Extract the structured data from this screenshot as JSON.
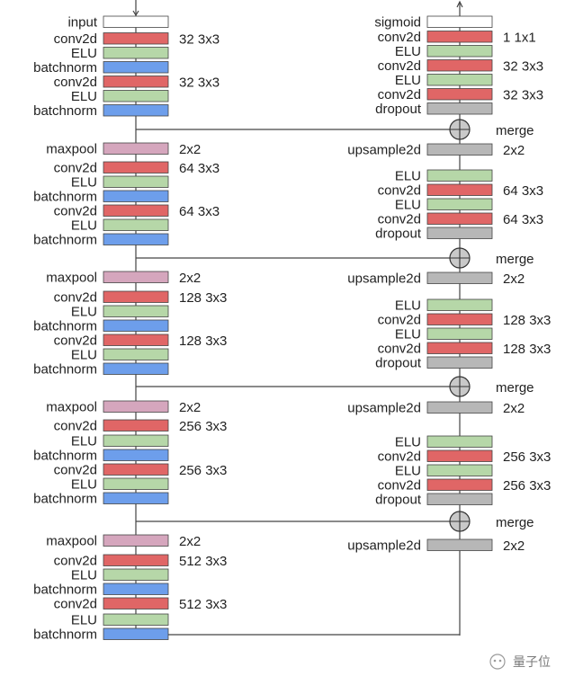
{
  "colors": {
    "input": "#ffffff",
    "conv2d": "#e06666",
    "elu": "#b6d7a8",
    "batchnorm": "#6d9eeb",
    "maxpool": "#d5a6bd",
    "upsample": "#b7b7b7",
    "dropout": "#b7b7b7",
    "sigmoid": "#ffffff",
    "stroke": "#444444",
    "line": "#444444"
  },
  "encoder": [
    {
      "label": "input",
      "kind": "input",
      "param": ""
    },
    {
      "label": "conv2d",
      "kind": "conv2d",
      "param": "32 3x3"
    },
    {
      "label": "ELU",
      "kind": "elu",
      "param": ""
    },
    {
      "label": "batchnorm",
      "kind": "batchnorm",
      "param": ""
    },
    {
      "label": "conv2d",
      "kind": "conv2d",
      "param": "32 3x3"
    },
    {
      "label": "ELU",
      "kind": "elu",
      "param": ""
    },
    {
      "label": "batchnorm",
      "kind": "batchnorm",
      "param": ""
    },
    {
      "label": "maxpool",
      "kind": "maxpool",
      "param": "2x2"
    },
    {
      "label": "conv2d",
      "kind": "conv2d",
      "param": "64 3x3"
    },
    {
      "label": "ELU",
      "kind": "elu",
      "param": ""
    },
    {
      "label": "batchnorm",
      "kind": "batchnorm",
      "param": ""
    },
    {
      "label": "conv2d",
      "kind": "conv2d",
      "param": "64 3x3"
    },
    {
      "label": "ELU",
      "kind": "elu",
      "param": ""
    },
    {
      "label": "batchnorm",
      "kind": "batchnorm",
      "param": ""
    },
    {
      "label": "maxpool",
      "kind": "maxpool",
      "param": "2x2"
    },
    {
      "label": "conv2d",
      "kind": "conv2d",
      "param": "128 3x3"
    },
    {
      "label": "ELU",
      "kind": "elu",
      "param": ""
    },
    {
      "label": "batchnorm",
      "kind": "batchnorm",
      "param": ""
    },
    {
      "label": "conv2d",
      "kind": "conv2d",
      "param": "128 3x3"
    },
    {
      "label": "ELU",
      "kind": "elu",
      "param": ""
    },
    {
      "label": "batchnorm",
      "kind": "batchnorm",
      "param": ""
    },
    {
      "label": "maxpool",
      "kind": "maxpool",
      "param": "2x2"
    },
    {
      "label": "conv2d",
      "kind": "conv2d",
      "param": "256 3x3"
    },
    {
      "label": "ELU",
      "kind": "elu",
      "param": ""
    },
    {
      "label": "batchnorm",
      "kind": "batchnorm",
      "param": ""
    },
    {
      "label": "conv2d",
      "kind": "conv2d",
      "param": "256 3x3"
    },
    {
      "label": "ELU",
      "kind": "elu",
      "param": ""
    },
    {
      "label": "batchnorm",
      "kind": "batchnorm",
      "param": ""
    },
    {
      "label": "maxpool",
      "kind": "maxpool",
      "param": "2x2"
    },
    {
      "label": "conv2d",
      "kind": "conv2d",
      "param": "512 3x3"
    },
    {
      "label": "ELU",
      "kind": "elu",
      "param": ""
    },
    {
      "label": "batchnorm",
      "kind": "batchnorm",
      "param": ""
    },
    {
      "label": "conv2d",
      "kind": "conv2d",
      "param": "512 3x3"
    },
    {
      "label": "ELU",
      "kind": "elu",
      "param": ""
    },
    {
      "label": "batchnorm",
      "kind": "batchnorm",
      "param": ""
    }
  ],
  "decoder": [
    {
      "label": "sigmoid",
      "kind": "sigmoid",
      "param": ""
    },
    {
      "label": "conv2d",
      "kind": "conv2d",
      "param": "1   1x1"
    },
    {
      "label": "ELU",
      "kind": "elu",
      "param": ""
    },
    {
      "label": "conv2d",
      "kind": "conv2d",
      "param": "32 3x3"
    },
    {
      "label": "ELU",
      "kind": "elu",
      "param": ""
    },
    {
      "label": "conv2d",
      "kind": "conv2d",
      "param": "32 3x3"
    },
    {
      "label": "dropout",
      "kind": "dropout",
      "param": ""
    },
    {
      "label": "upsample2d",
      "kind": "upsample",
      "param": "2x2"
    },
    {
      "label": "ELU",
      "kind": "elu",
      "param": ""
    },
    {
      "label": "conv2d",
      "kind": "conv2d",
      "param": "64 3x3"
    },
    {
      "label": "ELU",
      "kind": "elu",
      "param": ""
    },
    {
      "label": "conv2d",
      "kind": "conv2d",
      "param": "64 3x3"
    },
    {
      "label": "dropout",
      "kind": "dropout",
      "param": ""
    },
    {
      "label": "upsample2d",
      "kind": "upsample",
      "param": "2x2"
    },
    {
      "label": "ELU",
      "kind": "elu",
      "param": ""
    },
    {
      "label": "conv2d",
      "kind": "conv2d",
      "param": "128 3x3"
    },
    {
      "label": "ELU",
      "kind": "elu",
      "param": ""
    },
    {
      "label": "conv2d",
      "kind": "conv2d",
      "param": "128 3x3"
    },
    {
      "label": "dropout",
      "kind": "dropout",
      "param": ""
    },
    {
      "label": "upsample2d",
      "kind": "upsample",
      "param": "2x2"
    },
    {
      "label": "ELU",
      "kind": "elu",
      "param": ""
    },
    {
      "label": "conv2d",
      "kind": "conv2d",
      "param": "256 3x3"
    },
    {
      "label": "ELU",
      "kind": "elu",
      "param": ""
    },
    {
      "label": "conv2d",
      "kind": "conv2d",
      "param": "256 3x3"
    },
    {
      "label": "dropout",
      "kind": "dropout",
      "param": ""
    },
    {
      "label": "upsample2d",
      "kind": "upsample",
      "param": "2x2"
    }
  ],
  "merge_label": "merge",
  "watermark": "量子位"
}
